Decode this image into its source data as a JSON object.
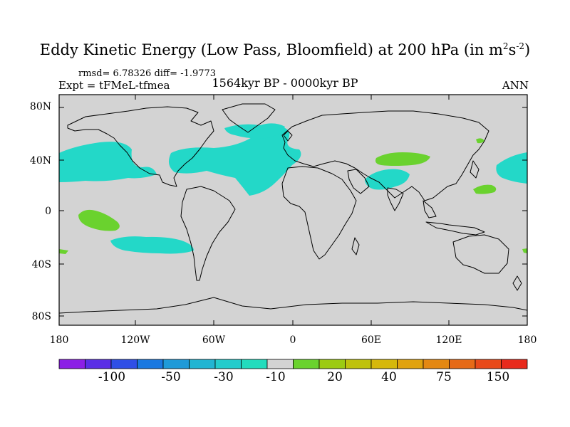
{
  "title": {
    "main": "Eddy Kinetic Energy (Low Pass, Bloomfield) at 200 hPa (in m",
    "sup1": "2",
    "mid": "s",
    "sup2": "-2",
    "close": ")"
  },
  "stats": "rmsd= 6.78326  diff= -1.9773",
  "experiment": "Expt = tFMeL-tfmea",
  "period": "1564kyr BP - 0000kyr BP",
  "season": "ANN",
  "lat_labels": [
    "80N",
    "40N",
    "0",
    "40S",
    "80S"
  ],
  "lon_labels": [
    "180",
    "120W",
    "60W",
    "0",
    "60E",
    "120E",
    "180"
  ],
  "colorbar": {
    "colors": [
      "#8c1fe6",
      "#5a2ee6",
      "#2f4fe6",
      "#1a78e0",
      "#1f9ad8",
      "#21b5d2",
      "#23cccc",
      "#22dcbd",
      "#d3d3d3",
      "#6ad22e",
      "#9ccb12",
      "#bfc20c",
      "#d6b80b",
      "#e0a20e",
      "#e48812",
      "#e66a17",
      "#e84a1a",
      "#e82a1c"
    ],
    "tick_labels": [
      "-100",
      "-50",
      "-30",
      "-10",
      "20",
      "40",
      "75",
      "150"
    ]
  },
  "colors": {
    "background_field": "#d3d3d3",
    "cyan_anomaly": "#23d8c8",
    "green_anomaly": "#6ad22e",
    "coastline": "#000000"
  }
}
